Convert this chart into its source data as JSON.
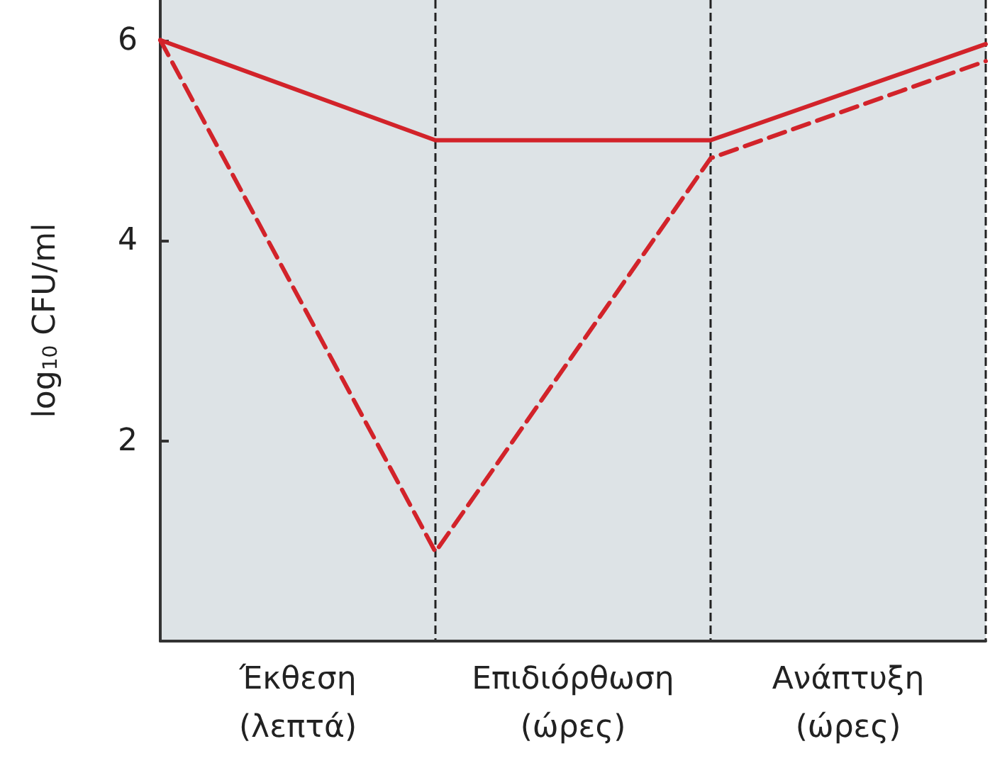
{
  "chart_data": {
    "type": "line",
    "ylabel": "log$_{10}$ CFU/ml",
    "categories": [
      null,
      "Έκθεση\n(λεπτά)",
      null,
      "Επιδιόρθωση\n(ώρες)",
      null,
      "Ανάπτυξη\n(ώρες)",
      null
    ],
    "ylim": [
      0,
      6.4
    ],
    "yticks": [
      2,
      4,
      6
    ],
    "grid": "x",
    "marker": "none",
    "series": [
      {
        "color": "#d2232a",
        "line_style": "solid",
        "values": [
          6,
          null,
          5,
          null,
          5,
          null,
          5.96
        ]
      },
      {
        "color": "#d2232a",
        "line_style": "dashed",
        "values": [
          6,
          null,
          0.89,
          null,
          4.82,
          null,
          5.79
        ]
      }
    ]
  }
}
